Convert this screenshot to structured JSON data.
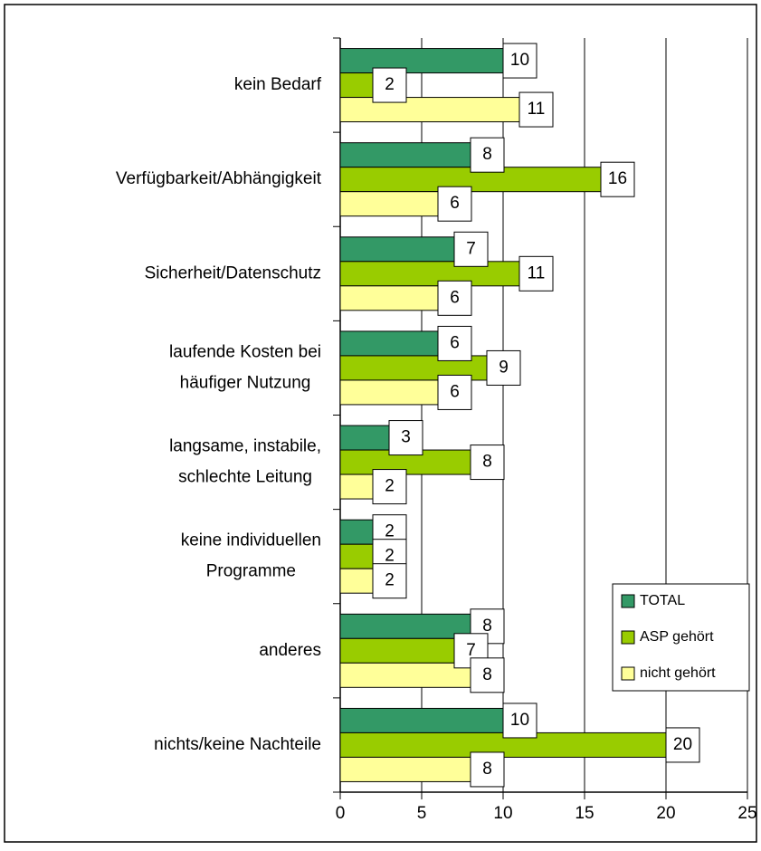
{
  "chart_data": {
    "type": "bar",
    "orientation": "horizontal",
    "categories": [
      [
        "kein Bedarf"
      ],
      [
        "Verfügbarkeit/Abhängigkeit"
      ],
      [
        "Sicherheit/Datenschutz"
      ],
      [
        "laufende Kosten bei",
        "häufiger Nutzung"
      ],
      [
        "langsame, instabile,",
        "schlechte Leitung"
      ],
      [
        "keine individuellen",
        "Programme"
      ],
      [
        "anderes"
      ],
      [
        "nichts/keine Nachteile"
      ]
    ],
    "series": [
      {
        "name": "TOTAL",
        "color": "#339966",
        "values": [
          10,
          8,
          7,
          6,
          3,
          2,
          8,
          10
        ]
      },
      {
        "name": "ASP gehört",
        "color": "#99cc00",
        "values": [
          2,
          16,
          11,
          9,
          8,
          2,
          7,
          20
        ]
      },
      {
        "name": "nicht gehört",
        "color": "#ffff99",
        "values": [
          11,
          6,
          6,
          6,
          2,
          2,
          8,
          8
        ]
      }
    ],
    "xlim": [
      0,
      25
    ],
    "xticks": [
      0,
      5,
      10,
      15,
      20,
      25
    ],
    "grid": true,
    "legend": "lower right"
  }
}
